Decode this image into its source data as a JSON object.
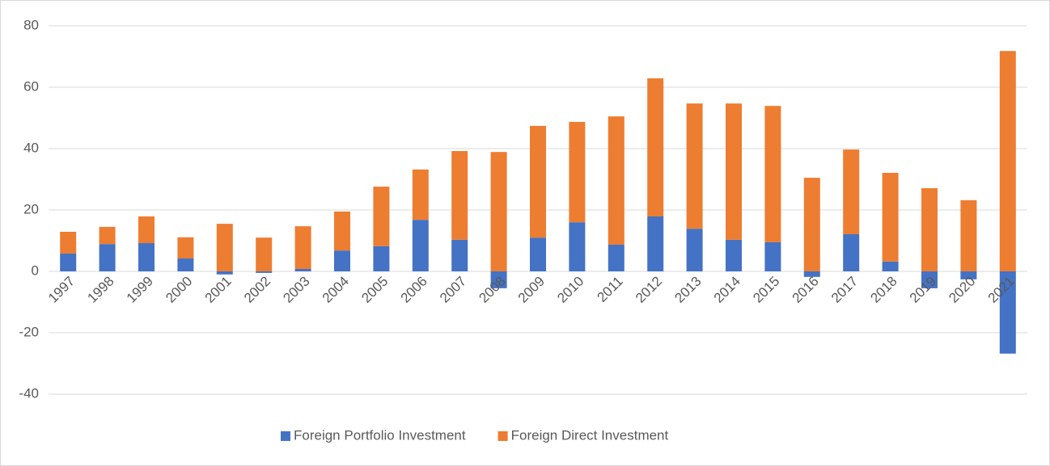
{
  "chart_data": {
    "type": "bar",
    "stacked": true,
    "categories": [
      "1997",
      "1998",
      "1999",
      "2000",
      "2001",
      "2002",
      "2003",
      "2004",
      "2005",
      "2006",
      "2007",
      "2008",
      "2009",
      "2010",
      "2011",
      "2012",
      "2013",
      "2014",
      "2015",
      "2016",
      "2017",
      "2018",
      "2019",
      "2020",
      "2021"
    ],
    "series": [
      {
        "name": "Foreign Portfolio Investment",
        "color": "#4472c4",
        "values": [
          5.8,
          8.9,
          9.2,
          4.2,
          -1,
          -0.5,
          0.8,
          6.8,
          8.2,
          16.8,
          10.3,
          -5.5,
          11,
          16,
          8.7,
          17.9,
          13.9,
          10.3,
          9.5,
          -1.8,
          12.1,
          3.2,
          -5.5,
          -2.6,
          -26.8
        ]
      },
      {
        "name": "Foreign Direct Investment",
        "color": "#ed7d31",
        "values": [
          7.1,
          5.6,
          8.7,
          6.9,
          15.5,
          11,
          13.9,
          12.7,
          19.4,
          16.4,
          28.9,
          38.9,
          36.4,
          32.7,
          41.8,
          45,
          40.8,
          44.4,
          44.4,
          30.5,
          27.6,
          28.9,
          27.1,
          23.2,
          71.8
        ]
      }
    ],
    "ylim": [
      -40,
      80
    ],
    "yticks": [
      -40,
      -20,
      0,
      20,
      40,
      60,
      80
    ],
    "grid": true,
    "legend": "bottom"
  }
}
